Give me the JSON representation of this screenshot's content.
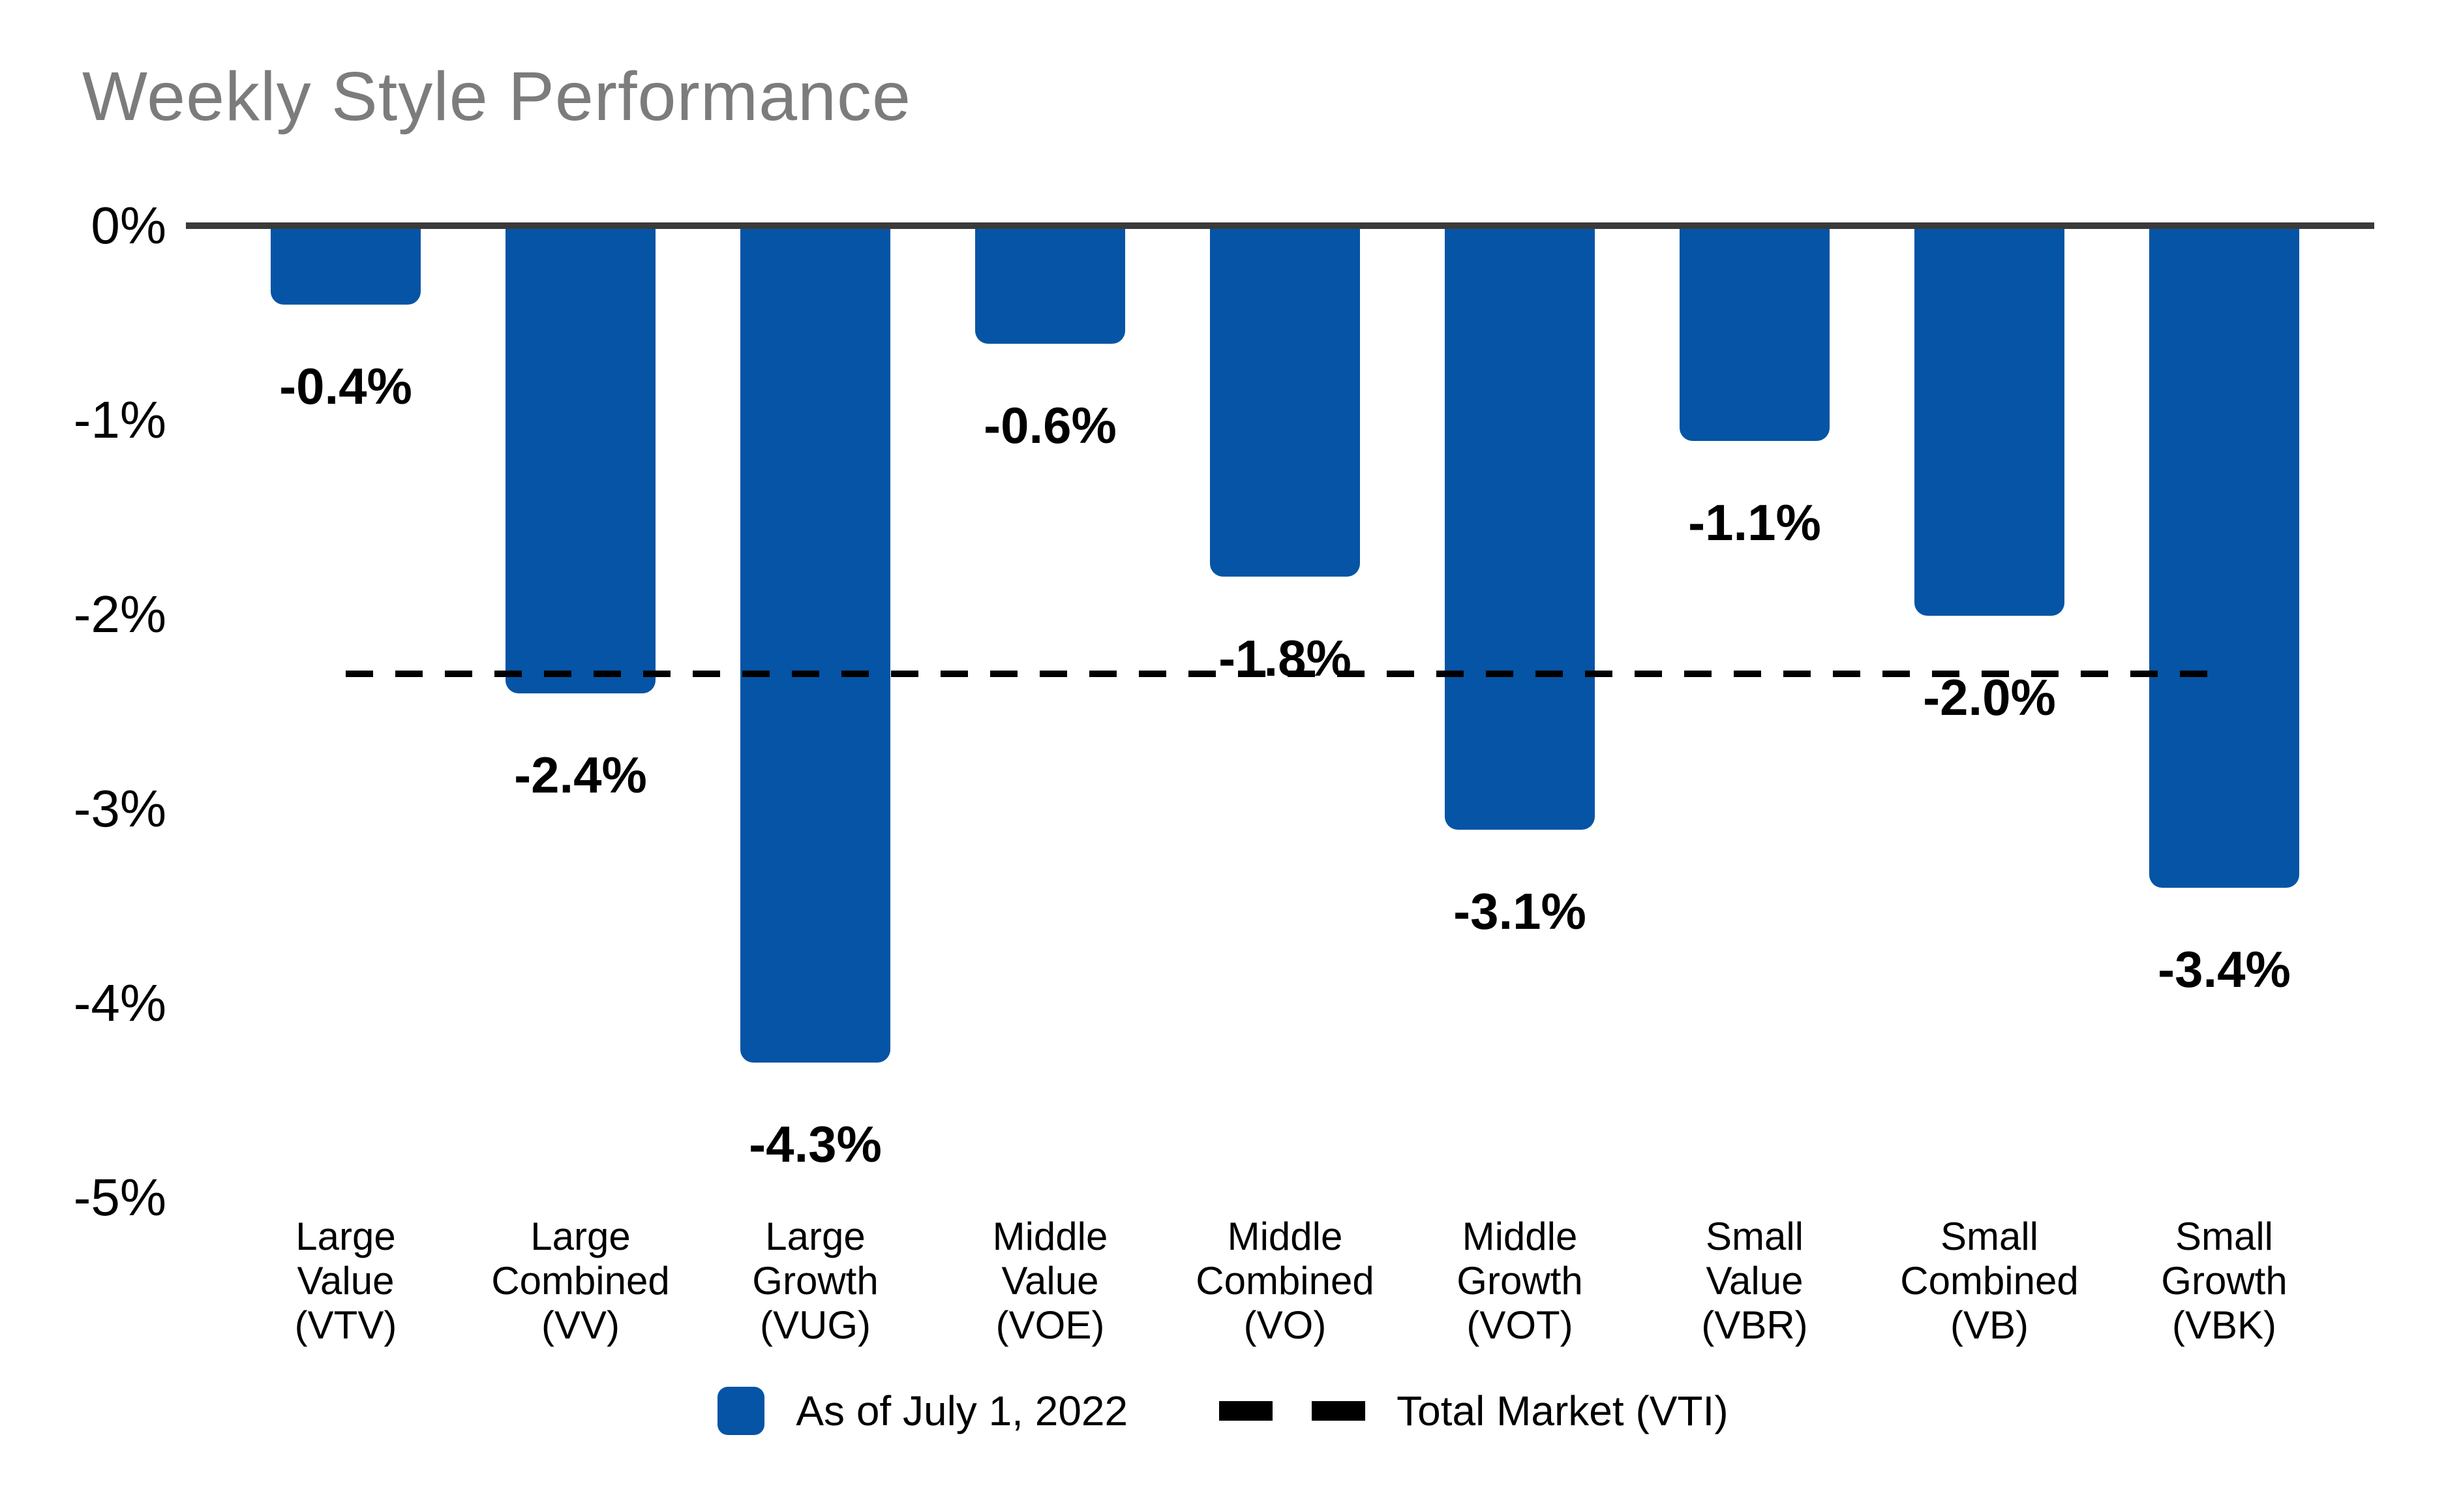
{
  "title": "Weekly Style Performance",
  "colors": {
    "bar": "#0554A5",
    "axis_line": "#3A3A3A",
    "title_text": "#7C7C7C",
    "dashed_line": "#000000",
    "label_text": "#000000",
    "background": "#FFFFFF"
  },
  "chart_data": {
    "type": "bar",
    "title": "Weekly Style Performance",
    "categories": [
      [
        "Large",
        "Value",
        "(VTV)"
      ],
      [
        "Large",
        "Combined",
        "(VV)"
      ],
      [
        "Large",
        "Growth",
        "(VUG)"
      ],
      [
        "Middle",
        "Value",
        "(VOE)"
      ],
      [
        "Middle",
        "Combined",
        "(VO)"
      ],
      [
        "Middle",
        "Growth",
        "(VOT)"
      ],
      [
        "Small",
        "Value",
        "(VBR)"
      ],
      [
        "Small",
        "Combined",
        "(VB)"
      ],
      [
        "Small",
        "Growth",
        "(VBK)"
      ]
    ],
    "tickers": [
      "VTV",
      "VV",
      "VUG",
      "VOE",
      "VO",
      "VOT",
      "VBR",
      "VB",
      "VBK"
    ],
    "values": [
      -0.4,
      -2.4,
      -4.3,
      -0.6,
      -1.8,
      -3.1,
      -1.1,
      -2.0,
      -3.4
    ],
    "value_labels": [
      "-0.4%",
      "-2.4%",
      "-4.3%",
      "-0.6%",
      "-1.8%",
      "-3.1%",
      "-1.1%",
      "-2.0%",
      "-3.4%"
    ],
    "xlabel": "",
    "ylabel": "",
    "ylim": [
      -5,
      0
    ],
    "yticks": [
      {
        "label": "0%",
        "value": 0
      },
      {
        "label": "-1%",
        "value": -1
      },
      {
        "label": "-2%",
        "value": -2
      },
      {
        "label": "-3%",
        "value": -3
      },
      {
        "label": "-4%",
        "value": -4
      },
      {
        "label": "-5%",
        "value": -5
      }
    ],
    "grid": false,
    "reference_line": {
      "label": "Total Market (VTI)",
      "value": -2.3,
      "style": "dashed"
    },
    "legend": {
      "position": "bottom-center",
      "items": [
        {
          "swatch": "bar-square",
          "label": "As of July 1, 2022"
        },
        {
          "swatch": "dashes",
          "label": "Total Market (VTI)"
        }
      ]
    }
  }
}
